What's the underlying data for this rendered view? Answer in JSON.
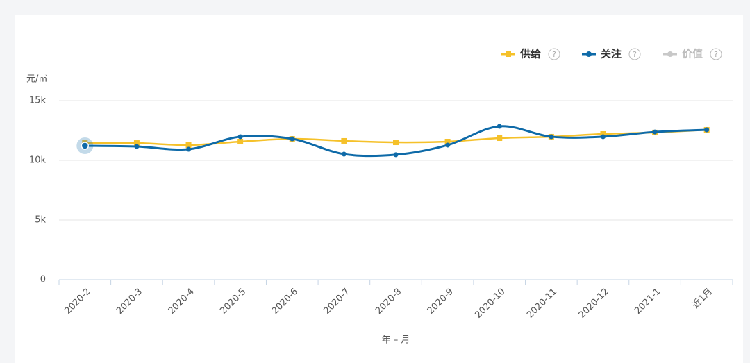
{
  "chart_data": {
    "type": "line",
    "y_unit": "元/㎡",
    "x_label": "年 – 月",
    "categories": [
      "2020-2",
      "2020-3",
      "2020-4",
      "2020-5",
      "2020-6",
      "2020-7",
      "2020-8",
      "2020-9",
      "2020-10",
      "2020-11",
      "2020-12",
      "2021-1",
      "近1月"
    ],
    "series": [
      {
        "name": "供给",
        "color": "#f5c12a",
        "marker": "square",
        "values": [
          11450,
          11450,
          11280,
          11570,
          11800,
          11630,
          11510,
          11570,
          11860,
          11980,
          12210,
          12330,
          12560
        ]
      },
      {
        "name": "关注",
        "color": "#0e6aa8",
        "marker": "circle",
        "values": [
          11220,
          11160,
          10930,
          11980,
          11800,
          10520,
          10470,
          11280,
          12850,
          11980,
          11980,
          12380,
          12560
        ]
      },
      {
        "name": "价值",
        "color": "#c8c8c8",
        "visible": false
      }
    ],
    "legend_help": "?",
    "ylim": [
      0,
      15000
    ],
    "yticks": [
      {
        "value": 0,
        "label": "0"
      },
      {
        "value": 5000,
        "label": "5k"
      },
      {
        "value": 10000,
        "label": "10k"
      },
      {
        "value": 15000,
        "label": "15k"
      }
    ],
    "grid": true,
    "legend": "top-right"
  }
}
